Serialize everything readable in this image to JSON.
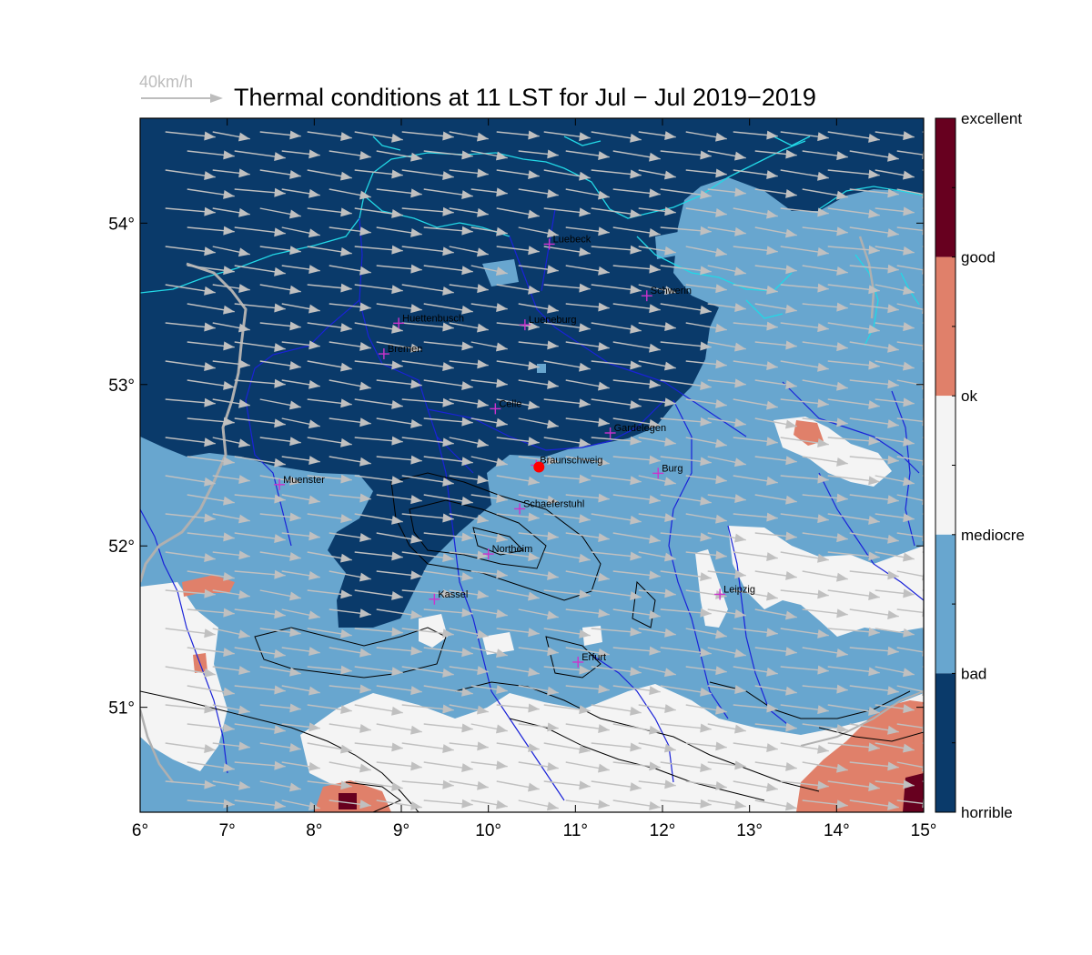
{
  "title": "Thermal conditions at 11 LST for Jul − Jul  2019−2019",
  "wind_reference": {
    "label": "40km/h"
  },
  "axes": {
    "x_ticks": [
      "6°",
      "7°",
      "8°",
      "9°",
      "10°",
      "11°",
      "12°",
      "13°",
      "14°",
      "15°"
    ],
    "x_values": [
      6,
      7,
      8,
      9,
      10,
      11,
      12,
      13,
      14,
      15
    ],
    "y_ticks": [
      "51°",
      "52°",
      "53°",
      "54°"
    ],
    "y_values": [
      51,
      52,
      53,
      54
    ],
    "lon_range": [
      6,
      15
    ],
    "lat_range": [
      50.35,
      54.65
    ]
  },
  "colorbar": {
    "labels": [
      "excellent",
      "good",
      "ok",
      "mediocre",
      "bad",
      "horrible"
    ],
    "colors": [
      "#67001f",
      "#e0806a",
      "#f4f4f4",
      "#68a6cf",
      "#0a3a6a"
    ]
  },
  "cities": [
    {
      "name": "Luebeck",
      "lon": 10.7,
      "lat": 53.87
    },
    {
      "name": "Schwerin",
      "lon": 11.82,
      "lat": 53.55
    },
    {
      "name": "Huettenbusch",
      "lon": 8.97,
      "lat": 53.38
    },
    {
      "name": "Lueneburg",
      "lon": 10.42,
      "lat": 53.37
    },
    {
      "name": "Bremen",
      "lon": 8.8,
      "lat": 53.19
    },
    {
      "name": "Celle",
      "lon": 10.08,
      "lat": 52.85
    },
    {
      "name": "Gardelegen",
      "lon": 11.4,
      "lat": 52.7
    },
    {
      "name": "Braunschweig",
      "lon": 10.55,
      "lat": 52.5
    },
    {
      "name": "Burg",
      "lon": 11.95,
      "lat": 52.45
    },
    {
      "name": "Muenster",
      "lon": 7.6,
      "lat": 52.38
    },
    {
      "name": "Schaeferstuhl",
      "lon": 10.36,
      "lat": 52.23
    },
    {
      "name": "Northeim",
      "lon": 10.0,
      "lat": 51.95
    },
    {
      "name": "Kassel",
      "lon": 9.38,
      "lat": 51.67
    },
    {
      "name": "Leipzig",
      "lon": 12.66,
      "lat": 51.7
    },
    {
      "name": "Erfurt",
      "lon": 11.03,
      "lat": 51.28
    }
  ],
  "launch_site": {
    "name": "Braunschweig",
    "lon": 10.55,
    "lat": 52.5,
    "color": "#ff0000"
  },
  "legend_colors": {
    "city_marker": "#cc33cc",
    "wind_arrow": "#c0c0c0",
    "coast": "#22d8e6",
    "river": "#1a22d8",
    "terrain_contour": "#000000"
  }
}
